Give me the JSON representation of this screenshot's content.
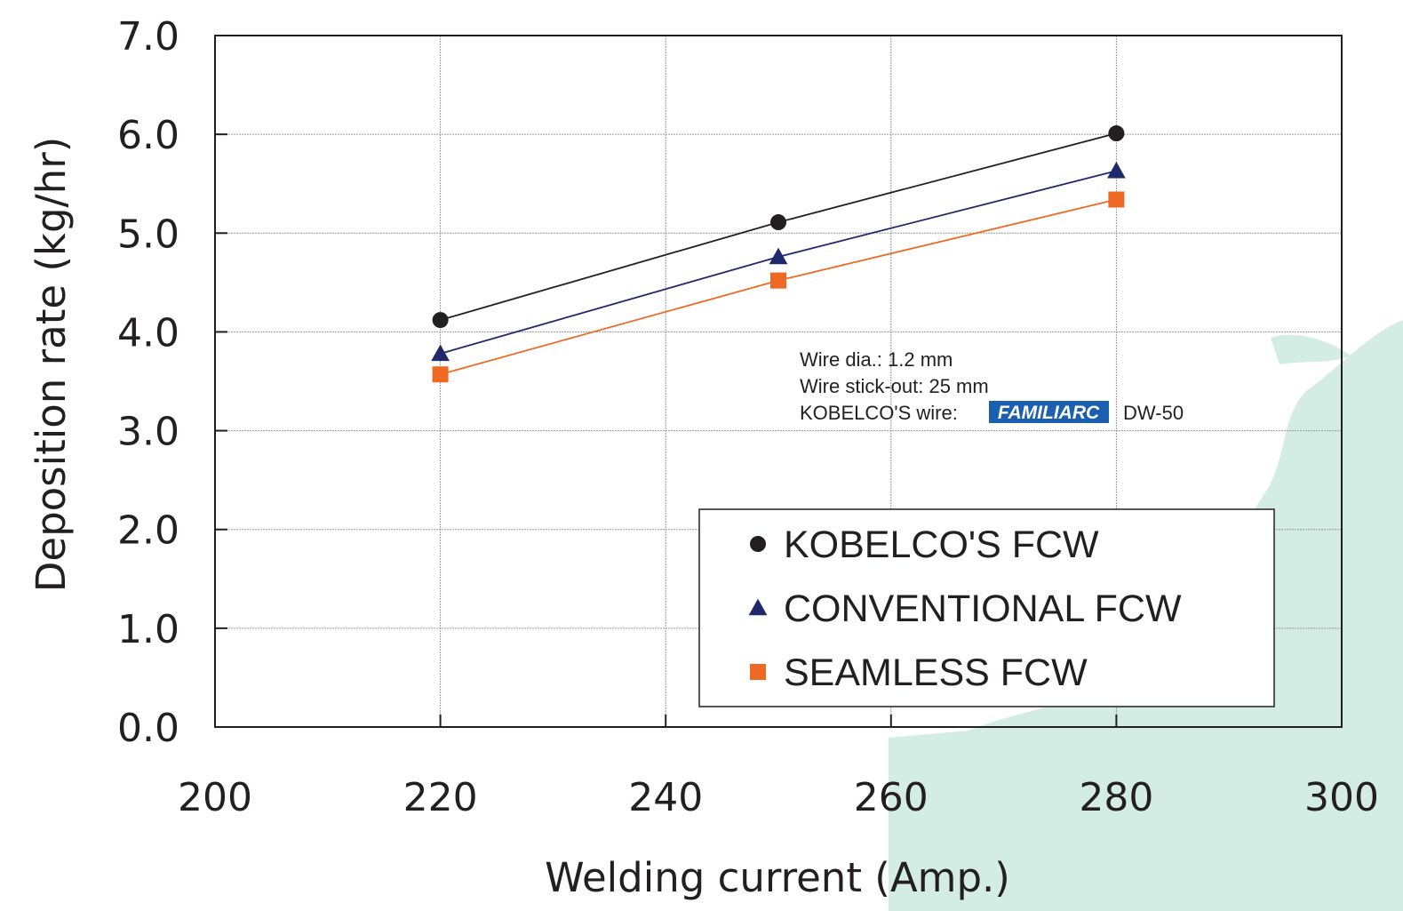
{
  "chart_data": {
    "type": "line",
    "xlabel": "Welding current (Amp.)",
    "ylabel": "Deposition rate (kg/hr)",
    "xlim": [
      200,
      300
    ],
    "ylim": [
      0,
      7
    ],
    "x_ticks": [
      200,
      220,
      240,
      260,
      280,
      300
    ],
    "y_ticks": [
      "0.0",
      "1.0",
      "2.0",
      "3.0",
      "4.0",
      "5.0",
      "6.0",
      "7.0"
    ],
    "x_tick_labels": [
      "200",
      "220",
      "240",
      "260",
      "280",
      "300"
    ],
    "grid": true,
    "legend_position": "bottom-right",
    "x": [
      220,
      250,
      280
    ],
    "series": [
      {
        "name": "KOBELCO'S FCW",
        "marker": "circle",
        "color": "#231f20",
        "values": [
          4.12,
          5.11,
          6.01
        ]
      },
      {
        "name": "CONVENTIONAL FCW",
        "marker": "triangle",
        "color": "#1f2a6b",
        "values": [
          3.78,
          4.76,
          5.63
        ]
      },
      {
        "name": "SEAMLESS FCW",
        "marker": "square",
        "color": "#ee6a24",
        "values": [
          3.57,
          4.52,
          5.34
        ]
      }
    ],
    "annotations": {
      "line1": "Wire dia.: 1.2 mm",
      "line2": "Wire stick-out: 25 mm",
      "line3_prefix": "KOBELCO'S wire:",
      "logo_text": "FAMILIARC",
      "line3_suffix": "DW-50"
    }
  },
  "colors": {
    "axis": "#231f20",
    "grid": "#9a9a9a",
    "map_background": "#d3ece4"
  }
}
